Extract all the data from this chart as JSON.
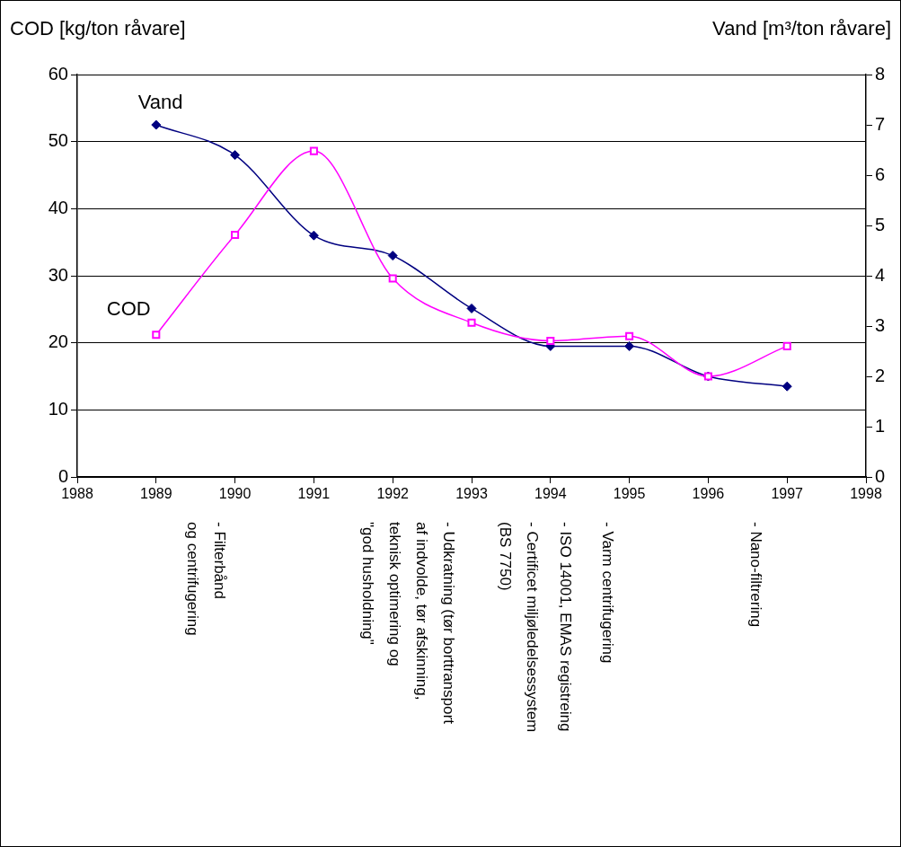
{
  "chart_data": {
    "type": "line",
    "ylabel": "COD [kg/ton råvare]",
    "y2label": "Vand [m³/ton råvare]",
    "x": [
      1989,
      1990,
      1991,
      1992,
      1993,
      1994,
      1995,
      1996,
      1997
    ],
    "series": [
      {
        "name": "Vand",
        "color": "#000080",
        "axis": "y2",
        "marker": "diamond",
        "values": [
          7.0,
          6.4,
          4.8,
          4.4,
          3.35,
          2.6,
          2.6,
          2.0,
          1.8
        ]
      },
      {
        "name": "COD",
        "color": "#ff00ff",
        "marker": "square",
        "values": [
          21.2,
          36.1,
          48.6,
          29.6,
          23.0,
          20.3,
          21.0,
          15.0,
          19.5
        ]
      }
    ],
    "xlim": [
      1988,
      1998
    ],
    "xticks": [
      1988,
      1989,
      1990,
      1991,
      1992,
      1993,
      1994,
      1995,
      1996,
      1997,
      1998
    ],
    "ylim": [
      0,
      60
    ],
    "yticks": [
      0,
      10,
      20,
      30,
      40,
      50,
      60
    ],
    "y2lim": [
      0,
      8
    ],
    "y2ticks": [
      0,
      1,
      2,
      3,
      4,
      5,
      6,
      7,
      8
    ],
    "grid": "y",
    "legend": false,
    "annotations": [
      "- Filterbånd\nog centrifugering",
      "- Udkratning (tør borttransport\naf indvolde, tør afskinning,\nteknisk optimering og\n\"god husholdning\"",
      "- Certificet miljøledelsessystem\n(BS 7750)",
      "- ISO 14001, EMAS registreing",
      "- Varm centrifugering",
      "- Nano-filtrering"
    ]
  }
}
